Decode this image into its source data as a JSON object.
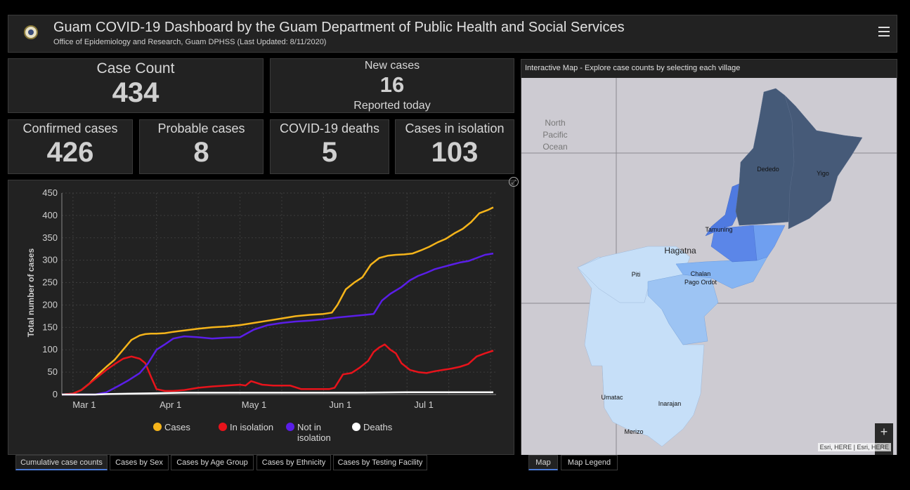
{
  "header": {
    "title": "Guam COVID-19 Dashboard by the Guam Department of Public Health and Social Services",
    "subtitle": "Office of Epidemiology and Research, Guam DPHSS (Last Updated: 8/11/2020)"
  },
  "indicators": {
    "case_count": {
      "label": "Case Count",
      "value": "434"
    },
    "new_cases": {
      "label": "New cases",
      "value": "16",
      "sub": "Reported today"
    },
    "confirmed": {
      "label": "Confirmed cases",
      "value": "426"
    },
    "probable": {
      "label": "Probable cases",
      "value": "8"
    },
    "deaths": {
      "label": "COVID-19 deaths",
      "value": "5"
    },
    "isolation": {
      "label": "Cases in isolation",
      "value": "103"
    }
  },
  "chart_data": {
    "type": "line",
    "title": "",
    "xlabel": "",
    "ylabel": "Total number of cases",
    "ylim": [
      0,
      450
    ],
    "yticks": [
      0,
      50,
      100,
      150,
      200,
      250,
      300,
      350,
      400,
      450
    ],
    "xticks": [
      {
        "label": "Mar 1",
        "day": 0
      },
      {
        "label": "Apr 1",
        "day": 31
      },
      {
        "label": "May 1",
        "day": 61
      },
      {
        "label": "Jun 1",
        "day": 92
      },
      {
        "label": "Jul 1",
        "day": 122
      }
    ],
    "xlim_days": [
      -4,
      152
    ],
    "grid": true,
    "legend_position": "bottom",
    "series": [
      {
        "name": "Cases",
        "color": "#f5b41a",
        "x": [
          -4,
          0,
          3,
          6,
          9,
          12,
          15,
          18,
          21,
          24,
          26,
          28,
          30,
          33,
          36,
          40,
          45,
          50,
          55,
          60,
          65,
          70,
          75,
          80,
          85,
          90,
          93,
          95,
          98,
          101,
          104,
          107,
          110,
          113,
          116,
          119,
          122,
          125,
          128,
          131,
          134,
          137,
          140,
          143,
          146,
          149,
          151
        ],
        "y": [
          0,
          2,
          10,
          25,
          45,
          62,
          78,
          100,
          122,
          132,
          135,
          136,
          136,
          137,
          140,
          143,
          147,
          150,
          152,
          155,
          160,
          165,
          170,
          175,
          178,
          180,
          183,
          200,
          235,
          250,
          262,
          290,
          305,
          310,
          312,
          313,
          315,
          322,
          330,
          340,
          348,
          360,
          370,
          385,
          405,
          412,
          418
        ]
      },
      {
        "name": "In isolation",
        "color": "#e8131b",
        "x": [
          -4,
          0,
          3,
          6,
          9,
          12,
          15,
          18,
          21,
          24,
          26,
          28,
          30,
          33,
          36,
          40,
          45,
          50,
          55,
          60,
          62,
          64,
          68,
          72,
          75,
          78,
          82,
          86,
          90,
          92,
          94,
          97,
          100,
          103,
          106,
          108,
          110,
          112,
          114,
          116,
          118,
          121,
          124,
          127,
          130,
          133,
          136,
          139,
          142,
          145,
          148,
          151
        ],
        "y": [
          0,
          2,
          10,
          25,
          40,
          55,
          68,
          80,
          85,
          80,
          70,
          40,
          12,
          8,
          8,
          10,
          15,
          18,
          20,
          22,
          20,
          30,
          22,
          20,
          20,
          20,
          12,
          12,
          12,
          12,
          15,
          45,
          48,
          60,
          75,
          95,
          105,
          112,
          100,
          92,
          70,
          55,
          50,
          48,
          52,
          55,
          58,
          62,
          68,
          85,
          92,
          98
        ]
      },
      {
        "name": "Not in isolation",
        "color": "#5a1ee8",
        "x": [
          -4,
          8,
          12,
          16,
          20,
          24,
          27,
          30,
          33,
          36,
          40,
          45,
          50,
          55,
          60,
          65,
          70,
          75,
          80,
          85,
          90,
          95,
          100,
          105,
          108,
          111,
          114,
          118,
          121,
          124,
          127,
          130,
          133,
          136,
          139,
          142,
          145,
          148,
          151
        ],
        "y": [
          0,
          0,
          5,
          18,
          32,
          48,
          70,
          100,
          112,
          125,
          130,
          128,
          125,
          127,
          128,
          145,
          155,
          160,
          163,
          165,
          168,
          172,
          175,
          178,
          180,
          210,
          225,
          240,
          255,
          265,
          272,
          280,
          285,
          290,
          295,
          298,
          305,
          312,
          315
        ]
      },
      {
        "name": "Deaths",
        "color": "#ffffff",
        "x": [
          -4,
          8,
          12,
          20,
          30,
          40,
          60,
          80,
          100,
          120,
          140,
          151
        ],
        "y": [
          0,
          0,
          1,
          2,
          3,
          4,
          4,
          4,
          4,
          5,
          5,
          5
        ]
      }
    ]
  },
  "legend_extra": {
    "not_in_isolation_line2": "isolation"
  },
  "tabs": [
    {
      "label": "Cumulative case counts",
      "active": true
    },
    {
      "label": "Cases by Sex",
      "active": false
    },
    {
      "label": "Cases by Age Group",
      "active": false
    },
    {
      "label": "Cases by Ethnicity",
      "active": false
    },
    {
      "label": "Cases by Testing Facility",
      "active": false
    }
  ],
  "map": {
    "title": "Interactive Map - Explore case counts by selecting each village",
    "ocean_label": [
      "North",
      "Pacific",
      "Ocean"
    ],
    "labels": {
      "dededo": "Dededo",
      "yigo": "Yigo",
      "tamuning": "Tamuning",
      "hagatna": "Hagatna",
      "piti": "Piti",
      "chalan1": "Chalan",
      "chalan2": "Pago Ordot",
      "umatac": "Umatac",
      "inarajan": "Inarajan",
      "merizo": "Merizo"
    },
    "zoom_in": "+",
    "zoom_out": "−",
    "attribution": "Esri, HERE | Esri, HERE"
  },
  "map_tabs": [
    {
      "label": "Map",
      "active": true
    },
    {
      "label": "Map Legend",
      "active": false
    }
  ]
}
